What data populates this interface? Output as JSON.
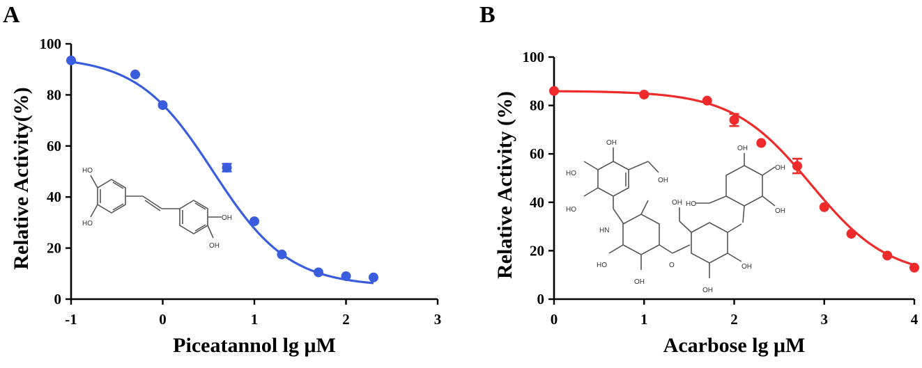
{
  "chart_data": [
    {
      "panel": "A",
      "type": "scatter",
      "xlabel": "Piceatannol lg μM",
      "ylabel": "Relative Activity(%)",
      "xlim": [
        -1,
        3
      ],
      "ylim": [
        0,
        100
      ],
      "xticks": [
        "-1",
        "0",
        "1",
        "2",
        "3"
      ],
      "yticks": [
        "0",
        "20",
        "40",
        "60",
        "80",
        "100"
      ],
      "color": "#3a5de0",
      "fit": {
        "type": "sigmoid",
        "top": 95,
        "bottom": 5,
        "log_ic50": 0.55,
        "hill": 1.05
      },
      "points": [
        {
          "x": -1.0,
          "y": 93.5,
          "err": 0
        },
        {
          "x": -0.3,
          "y": 88,
          "err": 0
        },
        {
          "x": 0.0,
          "y": 76,
          "err": 0
        },
        {
          "x": 0.7,
          "y": 51.5,
          "err": 1.5
        },
        {
          "x": 1.0,
          "y": 30.5,
          "err": 0
        },
        {
          "x": 1.3,
          "y": 17.5,
          "err": 0
        },
        {
          "x": 1.7,
          "y": 10.5,
          "err": 0
        },
        {
          "x": 2.0,
          "y": 9,
          "err": 0
        },
        {
          "x": 2.3,
          "y": 8.5,
          "err": 0
        }
      ]
    },
    {
      "panel": "B",
      "type": "scatter",
      "xlabel": "Acarbose lg μM",
      "ylabel": "Relative Activity (%)",
      "xlim": [
        0,
        4
      ],
      "ylim": [
        0,
        100
      ],
      "xticks": [
        "0",
        "1",
        "2",
        "3",
        "4"
      ],
      "yticks": [
        "0",
        "20",
        "40",
        "60",
        "80",
        "100"
      ],
      "color": "#ee2a2a",
      "fit": {
        "type": "sigmoid",
        "top": 86,
        "bottom": 9,
        "log_ic50": 2.85,
        "hill": 1.0
      },
      "points": [
        {
          "x": 0.0,
          "y": 86,
          "err": 0
        },
        {
          "x": 1.0,
          "y": 84.5,
          "err": 0
        },
        {
          "x": 1.7,
          "y": 82,
          "err": 0
        },
        {
          "x": 2.0,
          "y": 74,
          "err": 2.5
        },
        {
          "x": 2.3,
          "y": 64.5,
          "err": 0
        },
        {
          "x": 2.7,
          "y": 55,
          "err": 3
        },
        {
          "x": 3.0,
          "y": 38,
          "err": 0
        },
        {
          "x": 3.3,
          "y": 27,
          "err": 0
        },
        {
          "x": 3.7,
          "y": 18,
          "err": 0
        },
        {
          "x": 4.0,
          "y": 13,
          "err": 0
        }
      ]
    }
  ]
}
